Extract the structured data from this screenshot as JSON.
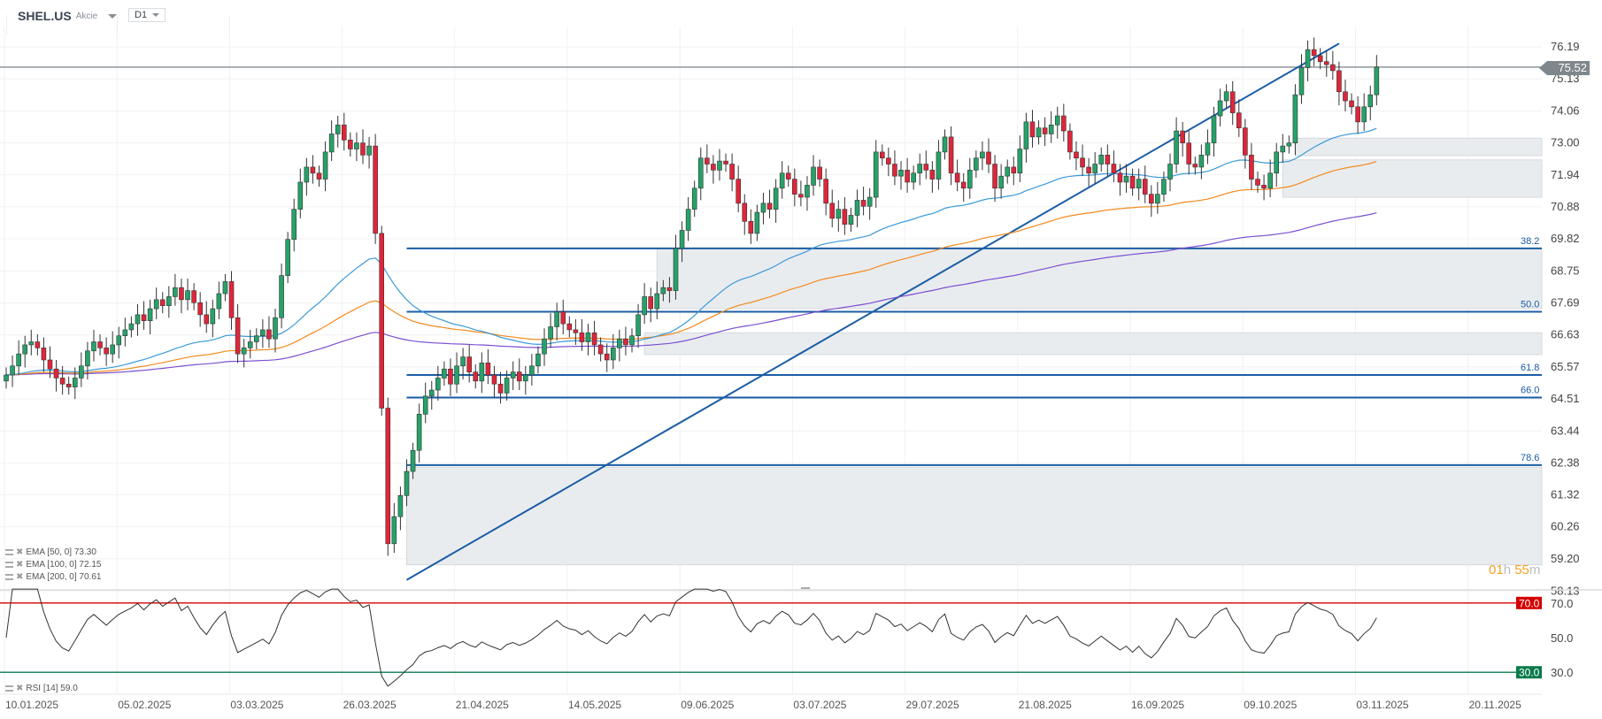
{
  "header": {
    "symbol": "SHEL.US",
    "type": "Akcie",
    "timeframe": "D1"
  },
  "current_price": "75.52",
  "timer": {
    "hours": "01",
    "h": "h",
    "minutes": "55",
    "m": "m"
  },
  "colors": {
    "up": "#26a269",
    "down": "#e0253a",
    "ema50": "#3a9ad9",
    "ema100": "#f28a1e",
    "ema200": "#7b4fd0",
    "fib": "#1b5da6",
    "rsi_over": "#d40000",
    "rsi_under": "#0b7a4b"
  },
  "legend": {
    "ema50": "EMA [50, 0] 73.30",
    "ema100": "EMA [100, 0] 72.15",
    "ema200": "EMA [200, 0] 70.61",
    "rsi": "RSI [14] 59.0"
  },
  "chart_data": {
    "type": "candlestick",
    "note": "daily closes; open = previous close",
    "closes": [
      65.3,
      65.6,
      66.0,
      66.3,
      66.4,
      66.2,
      65.8,
      65.5,
      65.2,
      65.0,
      64.9,
      65.2,
      65.6,
      66.1,
      66.4,
      66.2,
      66.0,
      66.3,
      66.6,
      66.8,
      67.0,
      67.3,
      67.1,
      67.5,
      67.8,
      67.6,
      67.9,
      68.2,
      67.8,
      68.1,
      67.7,
      67.3,
      67.0,
      67.5,
      68.0,
      68.4,
      67.2,
      66.0,
      66.2,
      66.4,
      66.6,
      66.8,
      66.5,
      67.2,
      68.6,
      69.8,
      70.8,
      71.7,
      72.2,
      72.0,
      71.8,
      72.7,
      73.3,
      73.6,
      73.1,
      72.8,
      73.0,
      72.6,
      72.9,
      70.0,
      64.2,
      59.7,
      60.6,
      61.3,
      62.1,
      62.8,
      64.0,
      64.6,
      64.8,
      65.2,
      65.5,
      65.0,
      65.6,
      65.9,
      65.4,
      65.1,
      65.7,
      65.3,
      65.0,
      64.7,
      65.2,
      65.4,
      65.1,
      65.3,
      65.6,
      66.0,
      66.5,
      66.9,
      67.4,
      67.0,
      66.8,
      66.7,
      66.4,
      66.7,
      66.3,
      66.0,
      65.8,
      66.2,
      66.5,
      66.3,
      66.6,
      67.3,
      67.9,
      67.5,
      68.0,
      68.2,
      68.1,
      69.5,
      70.1,
      70.8,
      71.5,
      72.5,
      72.3,
      72.1,
      72.4,
      72.3,
      71.8,
      71.0,
      70.4,
      70.0,
      70.7,
      71.0,
      70.8,
      71.5,
      72.0,
      71.8,
      71.3,
      71.2,
      71.6,
      72.2,
      71.8,
      71.0,
      70.5,
      70.8,
      70.3,
      70.6,
      71.1,
      70.9,
      71.2,
      72.7,
      72.5,
      72.3,
      71.9,
      72.1,
      71.7,
      72.0,
      72.3,
      72.1,
      71.8,
      72.7,
      73.2,
      72.0,
      71.7,
      71.5,
      72.1,
      72.5,
      72.7,
      72.3,
      71.5,
      71.9,
      72.2,
      72.0,
      72.8,
      73.7,
      73.2,
      73.5,
      73.3,
      73.6,
      73.9,
      73.4,
      72.7,
      72.5,
      72.2,
      72.0,
      72.3,
      72.6,
      72.3,
      72.0,
      71.7,
      71.9,
      71.5,
      71.8,
      71.3,
      71.0,
      71.3,
      71.8,
      72.3,
      73.4,
      73.0,
      72.3,
      72.2,
      72.6,
      73.0,
      73.9,
      74.4,
      74.7,
      74.0,
      73.5,
      72.6,
      71.8,
      71.6,
      71.5,
      72.0,
      72.7,
      72.9,
      73.0,
      74.6,
      75.5,
      76.1,
      75.9,
      75.7,
      75.6,
      75.4,
      74.7,
      74.4,
      74.2,
      73.7,
      74.2,
      74.6,
      75.52
    ],
    "price_ticks": [
      "76.19",
      "75.13",
      "74.06",
      "73.00",
      "71.94",
      "70.88",
      "69.82",
      "68.75",
      "67.69",
      "66.63",
      "65.57",
      "64.51",
      "63.44",
      "62.38",
      "61.32",
      "60.26",
      "59.20",
      "58.13"
    ],
    "date_ticks": [
      "10.01.2025",
      "05.02.2025",
      "03.03.2025",
      "26.03.2025",
      "21.04.2025",
      "14.05.2025",
      "09.06.2025",
      "03.07.2025",
      "29.07.2025",
      "21.08.2025",
      "16.09.2025",
      "09.10.2025",
      "03.11.2025",
      "20.11.2025"
    ],
    "ylim": [
      58.13,
      76.19
    ],
    "fibonacci": {
      "low": 58.5,
      "high": 76.3,
      "start_bar": 64,
      "end_bar": 213,
      "levels": [
        "38.2",
        "50.0",
        "61.8",
        "66.0",
        "78.6"
      ]
    },
    "zones": [
      {
        "from": 67.5,
        "to": 69.5,
        "start_bar": 104
      },
      {
        "from": 65.98,
        "to": 66.7,
        "start_bar": 102
      },
      {
        "from": 59.0,
        "to": 62.24,
        "start_bar": 64
      },
      {
        "from": 72.58,
        "to": 73.16,
        "start_bar": 206
      },
      {
        "from": 71.2,
        "to": 72.44,
        "start_bar": 204
      }
    ],
    "rsi": {
      "period": 14,
      "levels": [
        "70.0",
        "50.0",
        "30.0"
      ],
      "overbought": "70.0",
      "oversold": "30.0"
    }
  }
}
